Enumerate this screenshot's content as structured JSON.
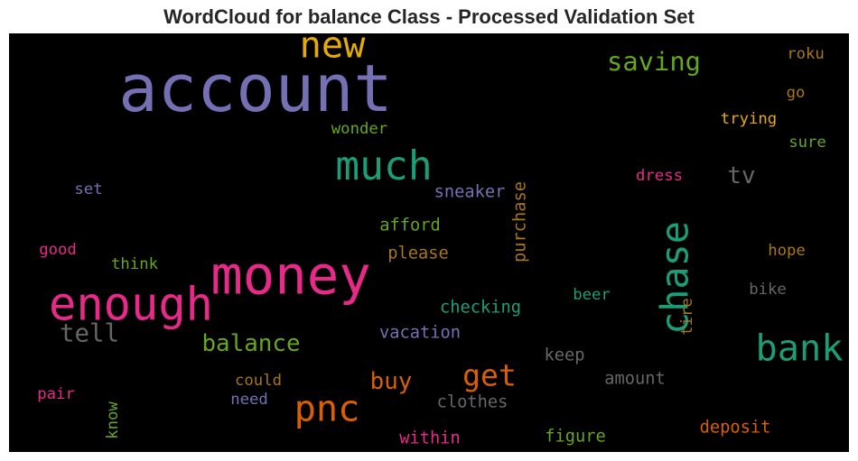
{
  "chart_data": {
    "type": "wordcloud",
    "title": "WordCloud for balance Class - Processed Validation Set",
    "background": "#000000",
    "palette": {
      "purple": "#7570b3",
      "orange": "#d95f02",
      "teal": "#1b9e77",
      "pink": "#e7298a",
      "green": "#66a61e",
      "gold": "#e6ab02",
      "brown": "#a6761d",
      "gray": "#666666"
    },
    "words": [
      {
        "text": "account",
        "weight": 1.0,
        "color": "#7570b3",
        "vertical": false
      },
      {
        "text": "money",
        "weight": 0.82,
        "color": "#e7298a",
        "vertical": false
      },
      {
        "text": "enough",
        "weight": 0.7,
        "color": "#e7298a",
        "vertical": false
      },
      {
        "text": "much",
        "weight": 0.62,
        "color": "#1b9e77",
        "vertical": false
      },
      {
        "text": "chase",
        "weight": 0.58,
        "color": "#1b9e77",
        "vertical": true
      },
      {
        "text": "pnc",
        "weight": 0.56,
        "color": "#d95f02",
        "vertical": false
      },
      {
        "text": "new",
        "weight": 0.56,
        "color": "#e6ab02",
        "vertical": false
      },
      {
        "text": "bank",
        "weight": 0.56,
        "color": "#1b9e77",
        "vertical": false
      },
      {
        "text": "get",
        "weight": 0.46,
        "color": "#d95f02",
        "vertical": false
      },
      {
        "text": "saving",
        "weight": 0.4,
        "color": "#66a61e",
        "vertical": false
      },
      {
        "text": "tell",
        "weight": 0.38,
        "color": "#666666",
        "vertical": false
      },
      {
        "text": "balance",
        "weight": 0.36,
        "color": "#66a61e",
        "vertical": false
      },
      {
        "text": "buy",
        "weight": 0.36,
        "color": "#d95f02",
        "vertical": false
      },
      {
        "text": "tv",
        "weight": 0.36,
        "color": "#666666",
        "vertical": false
      },
      {
        "text": "checking",
        "weight": 0.26,
        "color": "#1b9e77",
        "vertical": false
      },
      {
        "text": "sneaker",
        "weight": 0.26,
        "color": "#7570b3",
        "vertical": false
      },
      {
        "text": "purchase",
        "weight": 0.26,
        "color": "#a6761d",
        "vertical": true
      },
      {
        "text": "afford",
        "weight": 0.26,
        "color": "#66a61e",
        "vertical": false
      },
      {
        "text": "please",
        "weight": 0.26,
        "color": "#a6761d",
        "vertical": false
      },
      {
        "text": "vacation",
        "weight": 0.26,
        "color": "#7570b3",
        "vertical": false
      },
      {
        "text": "clothes",
        "weight": 0.26,
        "color": "#666666",
        "vertical": false
      },
      {
        "text": "deposit",
        "weight": 0.26,
        "color": "#d95f02",
        "vertical": false
      },
      {
        "text": "amount",
        "weight": 0.26,
        "color": "#666666",
        "vertical": false
      },
      {
        "text": "figure",
        "weight": 0.26,
        "color": "#66a61e",
        "vertical": false
      },
      {
        "text": "within",
        "weight": 0.26,
        "color": "#e7298a",
        "vertical": false
      },
      {
        "text": "keep",
        "weight": 0.26,
        "color": "#666666",
        "vertical": false
      },
      {
        "text": "trying",
        "weight": 0.24,
        "color": "#e6ab02",
        "vertical": false
      },
      {
        "text": "wonder",
        "weight": 0.24,
        "color": "#66a61e",
        "vertical": false
      },
      {
        "text": "dress",
        "weight": 0.24,
        "color": "#e7298a",
        "vertical": false
      },
      {
        "text": "tire",
        "weight": 0.24,
        "color": "#a6761d",
        "vertical": true
      },
      {
        "text": "beer",
        "weight": 0.24,
        "color": "#1b9e77",
        "vertical": false
      },
      {
        "text": "bike",
        "weight": 0.24,
        "color": "#666666",
        "vertical": false
      },
      {
        "text": "hope",
        "weight": 0.24,
        "color": "#a6761d",
        "vertical": false
      },
      {
        "text": "sure",
        "weight": 0.24,
        "color": "#66a61e",
        "vertical": false
      },
      {
        "text": "roku",
        "weight": 0.24,
        "color": "#a6761d",
        "vertical": false
      },
      {
        "text": "go",
        "weight": 0.24,
        "color": "#a6761d",
        "vertical": false
      },
      {
        "text": "think",
        "weight": 0.24,
        "color": "#66a61e",
        "vertical": false
      },
      {
        "text": "good",
        "weight": 0.24,
        "color": "#e7298a",
        "vertical": false
      },
      {
        "text": "set",
        "weight": 0.24,
        "color": "#7570b3",
        "vertical": false
      },
      {
        "text": "could",
        "weight": 0.24,
        "color": "#a6761d",
        "vertical": false
      },
      {
        "text": "need",
        "weight": 0.24,
        "color": "#7570b3",
        "vertical": false
      },
      {
        "text": "pair",
        "weight": 0.24,
        "color": "#e7298a",
        "vertical": false
      },
      {
        "text": "know",
        "weight": 0.24,
        "color": "#66a61e",
        "vertical": true
      }
    ]
  }
}
